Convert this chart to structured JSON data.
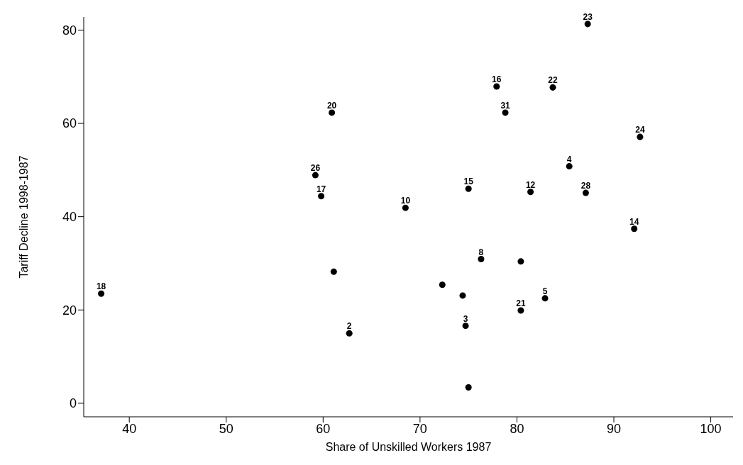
{
  "chart_data": {
    "type": "scatter",
    "xlabel": "Share of Unskilled Workers 1987",
    "ylabel": "Tariff Decline 1998-1987",
    "xlim": [
      35.3,
      102.3
    ],
    "ylim": [
      -2.9,
      82.8
    ],
    "xticks": [
      40,
      50,
      60,
      70,
      80,
      90,
      100
    ],
    "yticks": [
      0,
      20,
      40,
      60,
      80
    ],
    "grid": false,
    "legend": false,
    "marker": "circle",
    "series": [
      {
        "color": "#000000",
        "x": [
          87.3,
          77.9,
          83.7,
          60.9,
          78.8,
          92.7,
          85.4,
          59.2,
          75.0,
          81.4,
          87.1,
          59.8,
          68.5,
          92.1,
          76.3,
          82.9,
          37.1,
          80.4,
          74.7,
          62.7,
          80.4,
          61.1,
          72.3,
          74.4,
          75.0
        ],
        "values": [
          81.3,
          67.9,
          67.7,
          62.3,
          62.3,
          57.1,
          50.8,
          48.9,
          46.0,
          45.3,
          45.1,
          44.4,
          41.9,
          37.4,
          30.9,
          22.5,
          23.5,
          19.9,
          16.6,
          15.0,
          30.4,
          28.2,
          25.4,
          23.1,
          3.4
        ]
      }
    ],
    "annotations": [
      {
        "text": "23",
        "x": 87.3,
        "y": 81.3
      },
      {
        "text": "16",
        "x": 77.9,
        "y": 67.9
      },
      {
        "text": "22",
        "x": 83.7,
        "y": 67.7
      },
      {
        "text": "20",
        "x": 60.9,
        "y": 62.3
      },
      {
        "text": "31",
        "x": 78.8,
        "y": 62.3
      },
      {
        "text": "24",
        "x": 92.7,
        "y": 57.1
      },
      {
        "text": "4",
        "x": 85.4,
        "y": 50.8
      },
      {
        "text": "26",
        "x": 59.2,
        "y": 48.9
      },
      {
        "text": "15",
        "x": 75.0,
        "y": 46.0
      },
      {
        "text": "12",
        "x": 81.4,
        "y": 45.3
      },
      {
        "text": "28",
        "x": 87.1,
        "y": 45.1
      },
      {
        "text": "17",
        "x": 59.8,
        "y": 44.4
      },
      {
        "text": "10",
        "x": 68.5,
        "y": 41.9
      },
      {
        "text": "14",
        "x": 92.1,
        "y": 37.4
      },
      {
        "text": "8",
        "x": 76.3,
        "y": 30.9
      },
      {
        "text": "5",
        "x": 82.9,
        "y": 22.5
      },
      {
        "text": "18",
        "x": 37.1,
        "y": 23.5
      },
      {
        "text": "21",
        "x": 80.4,
        "y": 19.9
      },
      {
        "text": "3",
        "x": 74.7,
        "y": 16.6
      },
      {
        "text": "2",
        "x": 62.7,
        "y": 15.0
      }
    ]
  }
}
